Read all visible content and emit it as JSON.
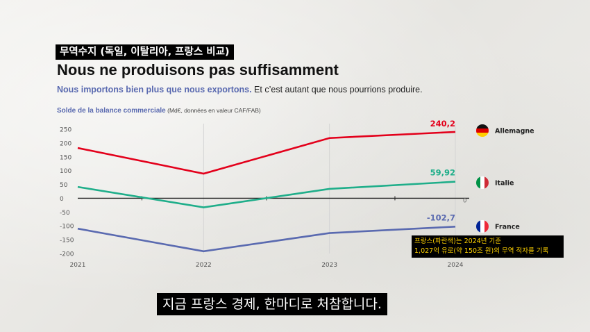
{
  "topic_label": "무역수지 (독일, 이탈리아, 프랑스 비교)",
  "title": "Nous ne produisons pas suffisamment",
  "subtitle_highlight": "Nous importons bien plus que nous exportons.",
  "subtitle_rest": " Et c’est autant que nous pourrions produire.",
  "chart_title": "Solde de la balance commerciale",
  "chart_units": " (Md€, données en valeur CAF/FAB)",
  "annotation": {
    "line1": "프랑스(파란색)는 2024년 기준",
    "line2": "1,027억 유로(약 150조 원)의 무역 적자를 기록"
  },
  "caption": "지금 프랑스 경제, 한마디로 처참합니다.",
  "colors": {
    "germany": "#e3001b",
    "italy": "#1fae8a",
    "france": "#5a6ab0"
  },
  "chart_data": {
    "type": "line",
    "x": [
      "2021",
      "2022",
      "2023",
      "2024"
    ],
    "ylim": [
      -200,
      250
    ],
    "yticks": [
      "250",
      "200",
      "150",
      "100",
      "50",
      "0",
      "-50",
      "-100",
      "-150",
      "-200"
    ],
    "ytick_values": [
      250,
      200,
      150,
      100,
      50,
      0,
      -50,
      -100,
      -150,
      -200
    ],
    "zero_right_label": "0",
    "grid": "vertical",
    "series": [
      {
        "name": "Allemagne",
        "key": "germany",
        "values": [
          182,
          89,
          218,
          240.2
        ],
        "end_label": "240,2",
        "flag": "germany-flag"
      },
      {
        "name": "Italie",
        "key": "italy",
        "values": [
          41,
          -33,
          34,
          59.92
        ],
        "end_label": "59,92",
        "flag": "italy-flag"
      },
      {
        "name": "France",
        "key": "france",
        "values": [
          -110,
          -192,
          -126,
          -102.7
        ],
        "end_label": "-102,7",
        "flag": "france-flag"
      }
    ]
  }
}
